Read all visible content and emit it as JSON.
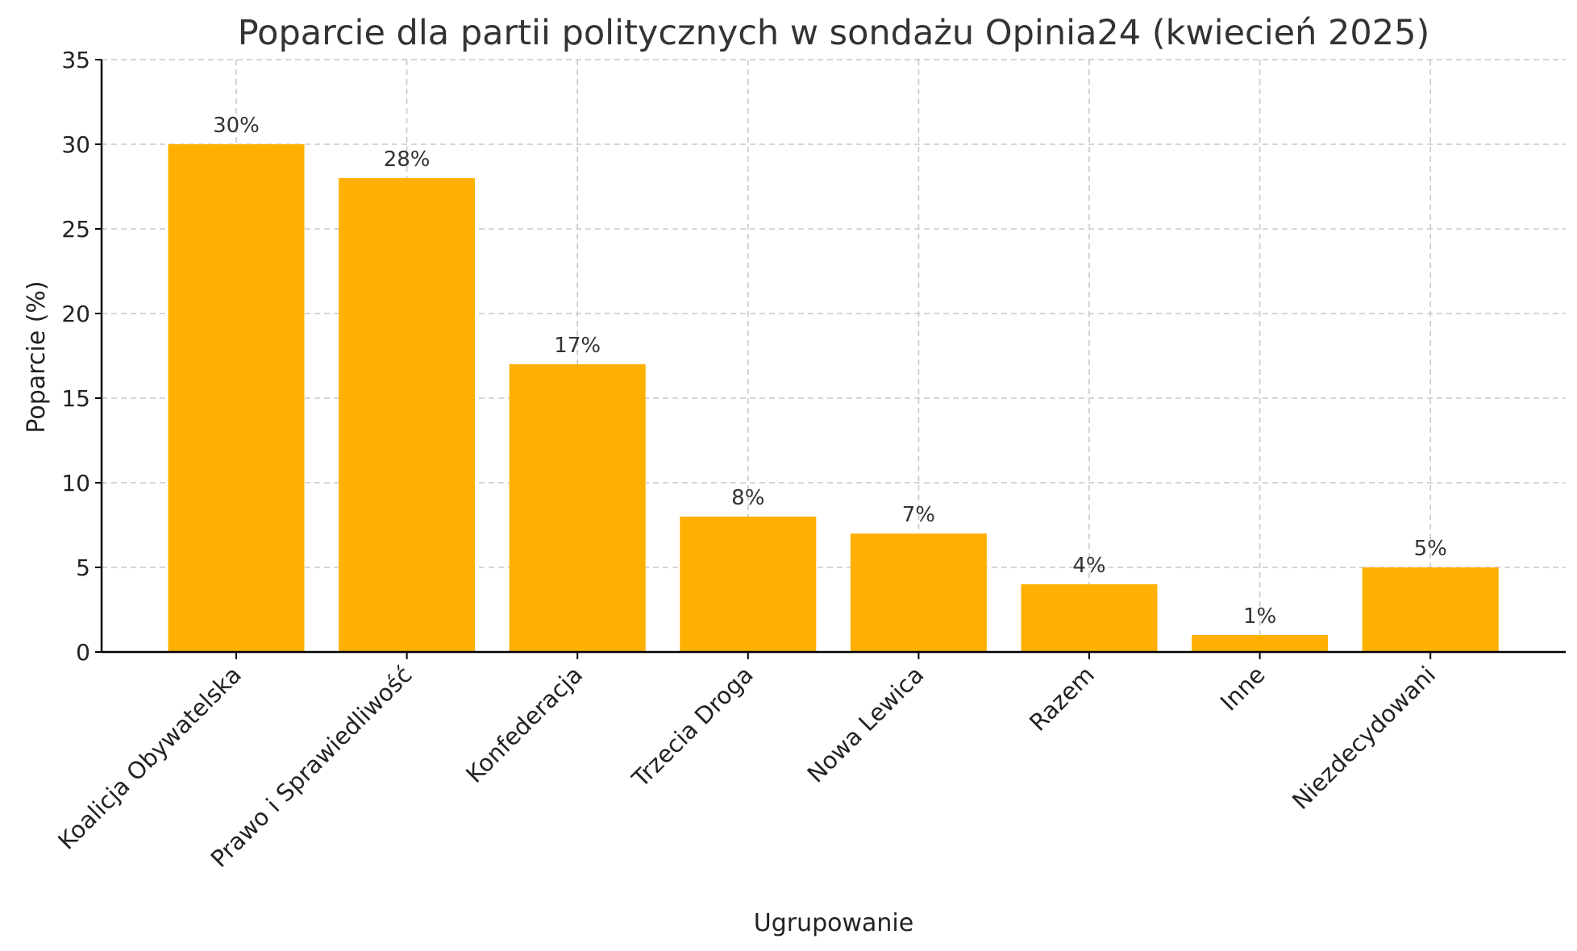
{
  "chart_data": {
    "type": "bar",
    "title": "Poparcie dla partii politycznych w sondażu Opinia24 (kwiecień 2025)",
    "xlabel": "Ugrupowanie",
    "ylabel": "Poparcie (%)",
    "categories": [
      "Koalicja Obywatelska",
      "Prawo i Sprawiedliwość",
      "Konfederacja",
      "Trzecia Droga",
      "Nowa Lewica",
      "Razem",
      "Inne",
      "Niezdecydowani"
    ],
    "values": [
      30,
      28,
      17,
      8,
      7,
      4,
      1,
      5
    ],
    "data_labels": [
      "30%",
      "28%",
      "17%",
      "8%",
      "7%",
      "4%",
      "1%",
      "5%"
    ],
    "ylim": [
      0,
      35
    ],
    "yticks": [
      0,
      5,
      10,
      15,
      20,
      25,
      30,
      35
    ],
    "grid": true,
    "bar_color": "#FFB000"
  }
}
